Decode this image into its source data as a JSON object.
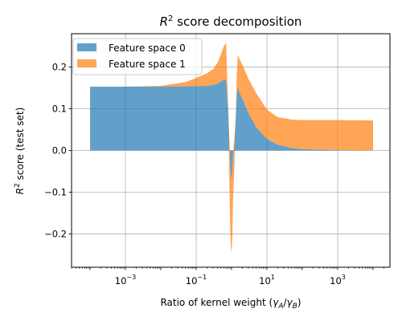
{
  "chart_data": {
    "type": "area",
    "title": {
      "base": "R",
      "sup": "2",
      "rest": " score decomposition"
    },
    "xlabel": {
      "pre": "Ratio of kernel weight (",
      "g1": "γ",
      "s1": "A",
      "slash": "/",
      "g2": "γ",
      "s2": "B",
      "post": ")"
    },
    "ylabel": {
      "base": "R",
      "sup": "2",
      "rest": " score (test set)"
    },
    "xscale": "log",
    "xlim": [
      3e-05,
      30000
    ],
    "ylim": [
      -0.28,
      0.28
    ],
    "xticks": [
      {
        "value": 0.001,
        "base": "10",
        "exp": "−3"
      },
      {
        "value": 0.1,
        "base": "10",
        "exp": "−1"
      },
      {
        "value": 10,
        "base": "10",
        "exp": "1"
      },
      {
        "value": 1000,
        "base": "10",
        "exp": "3"
      }
    ],
    "yticks": [
      {
        "value": -0.2,
        "label": "−0.2"
      },
      {
        "value": -0.1,
        "label": "−0.1"
      },
      {
        "value": 0.0,
        "label": "0.0"
      },
      {
        "value": 0.1,
        "label": "0.1"
      },
      {
        "value": 0.2,
        "label": "0.2"
      }
    ],
    "grid": true,
    "stacked": true,
    "legend_position": "top-left",
    "x": [
      0.0001,
      0.001,
      0.01,
      0.05,
      0.1,
      0.2,
      0.3,
      0.4,
      0.5,
      0.6,
      0.7,
      0.8,
      0.85,
      0.9,
      0.95,
      1.0,
      1.05,
      1.1,
      1.2,
      1.3,
      1.4,
      1.5,
      1.6,
      1.7,
      2.0,
      3.0,
      5.0,
      10,
      20,
      50,
      100,
      1000,
      10000
    ],
    "series": [
      {
        "name": "Feature space 0",
        "color": "#1f77b4",
        "values": [
          0.153,
          0.153,
          0.153,
          0.154,
          0.154,
          0.155,
          0.157,
          0.16,
          0.165,
          0.17,
          0.168,
          0.1,
          0.04,
          -0.02,
          -0.06,
          -0.07,
          -0.05,
          -0.01,
          0.02,
          0.07,
          0.13,
          0.152,
          0.145,
          0.138,
          0.125,
          0.09,
          0.055,
          0.028,
          0.014,
          0.006,
          0.003,
          0.001,
          0.0
        ]
      },
      {
        "name": "Feature space 1",
        "color": "#ff7f0e",
        "values": [
          0.0,
          0.0,
          0.002,
          0.01,
          0.02,
          0.03,
          0.038,
          0.05,
          0.065,
          0.08,
          0.09,
          0.01,
          -0.07,
          -0.13,
          -0.17,
          -0.175,
          -0.16,
          -0.11,
          -0.06,
          -0.01,
          0.05,
          0.075,
          0.08,
          0.08,
          0.082,
          0.082,
          0.082,
          0.07,
          0.066,
          0.068,
          0.07,
          0.072,
          0.072
        ]
      }
    ]
  }
}
